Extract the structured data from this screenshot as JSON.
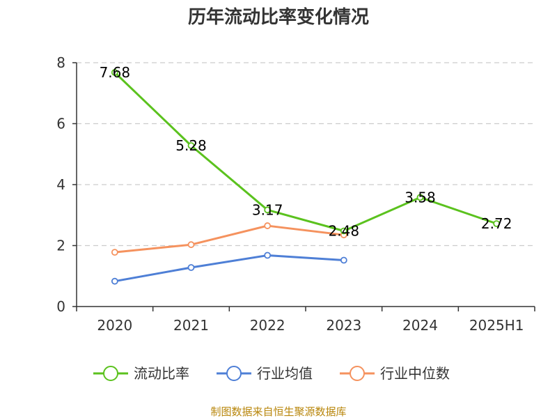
{
  "chart_data": {
    "type": "line",
    "title": "历年流动比率变化情况",
    "categories": [
      "2020",
      "2021",
      "2022",
      "2023",
      "2024",
      "2025H1"
    ],
    "ylim": [
      0,
      8
    ],
    "yticks": [
      "0",
      "2",
      "4",
      "6",
      "8"
    ],
    "grid": true,
    "legend_position": "bottom",
    "series": [
      {
        "name": "流动比率",
        "color": "#5bc21e",
        "values": [
          7.68,
          5.28,
          3.17,
          2.48,
          3.58,
          2.72
        ],
        "labels": [
          "7.68",
          "5.28",
          "3.17",
          "2.48",
          "3.58",
          "2.72"
        ]
      },
      {
        "name": "行业均值",
        "color": "#4e7fd6",
        "values": [
          0.83,
          1.28,
          1.68,
          1.52,
          null,
          null
        ]
      },
      {
        "name": "行业中位数",
        "color": "#f5925e",
        "values": [
          1.78,
          2.03,
          2.65,
          2.35,
          null,
          null
        ]
      }
    ]
  },
  "footer": {
    "source": "制图数据来自恒生聚源数据库"
  }
}
